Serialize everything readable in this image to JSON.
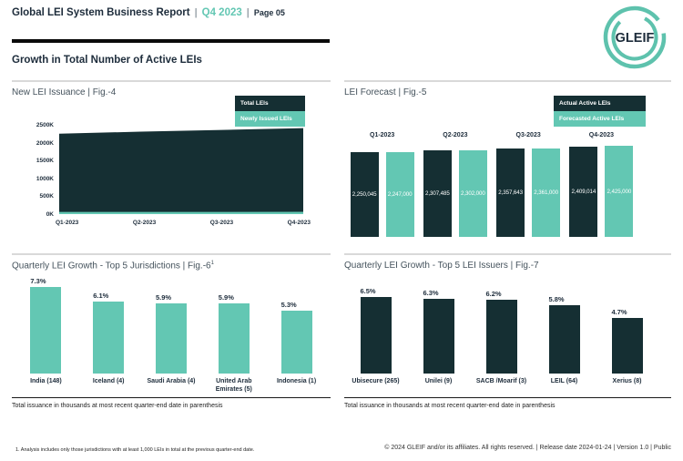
{
  "header": {
    "title": "Global LEI System Business Report",
    "separator": "|",
    "period": "Q4 2023",
    "page": "Page 05",
    "logo_text": "GLEIF"
  },
  "section_title": "Growth in Total Number of Active LEIs",
  "colors": {
    "dark": "#152f33",
    "teal": "#63c7b3",
    "logo_teal": "#5ec2ad",
    "heading_navy": "#1d2c3b",
    "panel_border_gray": "#d9d9d9"
  },
  "footer": {
    "footnote": "1. Analysis includes only those jurisdictions with at least 1,000 LEIs in total at the previous quarter-end date.",
    "copyright": "© 2024 GLEIF and/or its affiliates. All rights reserved. | Release date 2024-01-24 | Version 1.0 | Public"
  },
  "chart_data": [
    {
      "id": "fig4",
      "type": "area",
      "title": "New LEI Issuance | Fig.-4",
      "x": [
        "Q1-2023",
        "Q2-2023",
        "Q3-2023",
        "Q4-2023"
      ],
      "series": [
        {
          "name": "Total LEIs",
          "color": "#152f33",
          "values": [
            2250045,
            2307485,
            2357643,
            2409014
          ]
        },
        {
          "name": "Newly Issued LEIs",
          "color": "#63c7b3",
          "values": [
            60000,
            62000,
            61000,
            63000
          ]
        }
      ],
      "ylim": [
        0,
        2500000
      ],
      "yticks": [
        "0K",
        "500K",
        "1000K",
        "1500K",
        "2000K",
        "2500K"
      ],
      "legend_position": "top-right",
      "grid": false
    },
    {
      "id": "fig5",
      "type": "bar",
      "title": "LEI Forecast | Fig.-5",
      "categories": [
        "Q1-2023",
        "Q2-2023",
        "Q3-2023",
        "Q4-2023"
      ],
      "series": [
        {
          "name": "Actual Active LEIs",
          "color": "#152f33",
          "values": [
            2250045,
            2307485,
            2357643,
            2409014
          ],
          "labels": [
            "2,250,045",
            "2,307,485",
            "2,357,643",
            "2,409,014"
          ]
        },
        {
          "name": "Forecasted Active LEIs",
          "color": "#63c7b3",
          "values": [
            2247000,
            2302000,
            2361000,
            2425000
          ],
          "labels": [
            "2,247,000",
            "2,302,000",
            "2,361,000",
            "2,425,000"
          ]
        }
      ],
      "ylim": [
        0,
        2500000
      ],
      "value_labels": "inside-white",
      "legend_position": "top-right"
    },
    {
      "id": "fig6",
      "type": "bar",
      "title": "Quarterly LEI Growth - Top 5 Jurisdictions | Fig.-6",
      "title_superscript": "1",
      "categories": [
        "India (148)",
        "Iceland (4)",
        "Saudi Arabia (4)",
        "United Arab Emirates (5)",
        "Indonesia (1)"
      ],
      "values": [
        7.3,
        6.1,
        5.9,
        5.9,
        5.3
      ],
      "labels": [
        "7.3%",
        "6.1%",
        "5.9%",
        "5.9%",
        "5.3%"
      ],
      "bar_color": "#63c7b3",
      "ylim": [
        0,
        8
      ],
      "note": "Total issuance in thousands at most recent quarter-end date in parenthesis"
    },
    {
      "id": "fig7",
      "type": "bar",
      "title": "Quarterly LEI Growth - Top 5 LEI Issuers | Fig.-7",
      "categories": [
        "Ubisecure (265)",
        "Unilei (9)",
        "SACB /Moarif (3)",
        "LEIL (64)",
        "Xerius (8)"
      ],
      "values": [
        6.5,
        6.3,
        6.2,
        5.8,
        4.7
      ],
      "labels": [
        "6.5%",
        "6.3%",
        "6.2%",
        "5.8%",
        "4.7%"
      ],
      "bar_color": "#152f33",
      "ylim": [
        0,
        8
      ],
      "note": "Total issuance in thousands at most recent quarter-end date in parenthesis"
    }
  ]
}
